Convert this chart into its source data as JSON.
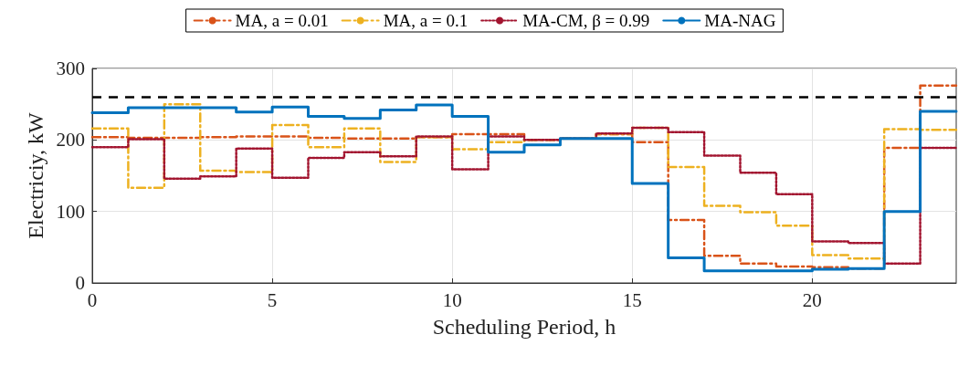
{
  "chart_data": {
    "type": "step",
    "xlabel": "Scheduling Period, h",
    "ylabel": "Electriciy, kW",
    "x": [
      0,
      1,
      2,
      3,
      4,
      5,
      6,
      7,
      8,
      9,
      10,
      11,
      12,
      13,
      14,
      15,
      16,
      17,
      18,
      19,
      20,
      21,
      22,
      23,
      24
    ],
    "xlim": [
      0,
      24
    ],
    "xticks": [
      0,
      5,
      10,
      15,
      20
    ],
    "ylim": [
      0,
      300
    ],
    "yticks": [
      0,
      100,
      200,
      300
    ],
    "grid": true,
    "legend": "top",
    "marker": "none",
    "ref_lines": [
      {
        "axis": "y",
        "value": 260,
        "color": "#000000",
        "line_style": "dashed"
      }
    ],
    "series": [
      {
        "name": "MA, a = 0.01",
        "color": "#d95319",
        "line_style": "dashed",
        "values": [
          204,
          203,
          203,
          204,
          205,
          205,
          203,
          202,
          202,
          204,
          208,
          208,
          200,
          202,
          208,
          197,
          88,
          38,
          27,
          23,
          22,
          20,
          189,
          276,
          276
        ]
      },
      {
        "name": "MA, a = 0.1",
        "color": "#edb120",
        "line_style": "dashed",
        "values": [
          216,
          133,
          250,
          157,
          155,
          221,
          190,
          216,
          169,
          204,
          187,
          197,
          200,
          202,
          208,
          217,
          162,
          108,
          99,
          80,
          39,
          34,
          215,
          214,
          214
        ]
      },
      {
        "name": "MA-CM, β = 0.99",
        "color": "#a2142f",
        "line_style": "dotted",
        "values": [
          190,
          201,
          146,
          149,
          188,
          147,
          175,
          183,
          177,
          205,
          159,
          205,
          200,
          202,
          209,
          217,
          211,
          178,
          154,
          124,
          58,
          56,
          27,
          189,
          189
        ]
      },
      {
        "name": "MA-NAG",
        "color": "#0072bd",
        "line_style": "solid",
        "values": [
          238,
          245,
          245,
          245,
          239,
          246,
          233,
          230,
          242,
          249,
          233,
          183,
          193,
          202,
          202,
          139,
          35,
          17,
          17,
          17,
          19,
          20,
          100,
          240,
          240
        ]
      }
    ]
  }
}
